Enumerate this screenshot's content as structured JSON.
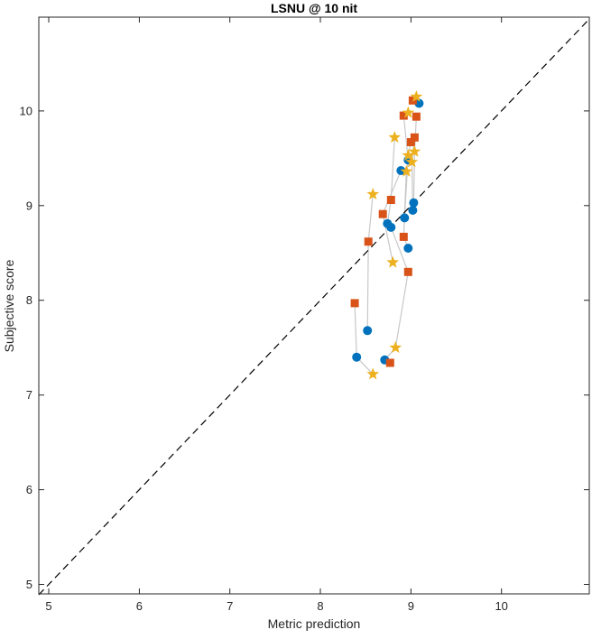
{
  "chart_data": {
    "type": "scatter",
    "title": "LSNU @ 10 nit",
    "xlabel": "Metric prediction",
    "ylabel": "Subjective score",
    "xlim": [
      4.89,
      10.97
    ],
    "ylim": [
      4.9,
      10.99
    ],
    "xticks": [
      5,
      6,
      7,
      8,
      9,
      10
    ],
    "yticks": [
      5,
      6,
      7,
      8,
      9,
      10
    ],
    "grid": false,
    "legend": "none",
    "axis_color": "#262626",
    "identity_line": {
      "style": "dashed",
      "color": "#000000",
      "from": [
        4.89,
        4.89
      ],
      "to": [
        10.97,
        10.97
      ]
    },
    "connector_lines": {
      "color": "#c8c8c8",
      "groups": [
        [
          [
            9.06,
            10.15
          ],
          [
            9.02,
            10.11
          ],
          [
            9.09,
            10.08
          ]
        ],
        [
          [
            8.97,
            9.98
          ],
          [
            8.92,
            9.95
          ],
          [
            8.97,
            9.48
          ]
        ],
        [
          [
            9.06,
            9.94
          ],
          [
            9.04,
            9.57
          ],
          [
            9.03,
            9.03
          ]
        ],
        [
          [
            9.04,
            9.72
          ],
          [
            9.01,
            9.46
          ],
          [
            9.02,
            8.95
          ]
        ],
        [
          [
            9.0,
            9.67
          ],
          [
            8.97,
            9.53
          ],
          [
            8.93,
            8.87
          ]
        ],
        [
          [
            8.82,
            9.72
          ],
          [
            8.78,
            9.06
          ],
          [
            8.74,
            8.81
          ]
        ],
        [
          [
            8.95,
            9.36
          ],
          [
            8.92,
            8.67
          ],
          [
            8.97,
            8.55
          ]
        ],
        [
          [
            8.89,
            9.37
          ],
          [
            8.69,
            8.91
          ],
          [
            8.8,
            8.4
          ]
        ],
        [
          [
            8.58,
            9.12
          ],
          [
            8.53,
            8.62
          ],
          [
            8.52,
            7.68
          ]
        ],
        [
          [
            8.78,
            8.77
          ],
          [
            8.97,
            8.3
          ],
          [
            8.83,
            7.5
          ]
        ],
        [
          [
            8.38,
            7.97
          ],
          [
            8.4,
            7.4
          ],
          [
            8.58,
            7.22
          ]
        ],
        [
          [
            8.83,
            7.5
          ],
          [
            8.71,
            7.37
          ],
          [
            8.77,
            7.34
          ]
        ]
      ]
    },
    "series": [
      {
        "name": "circle-series",
        "marker": "circle",
        "color": "#0072BD",
        "points": [
          [
            9.09,
            10.08
          ],
          [
            8.97,
            9.48
          ],
          [
            8.89,
            9.37
          ],
          [
            9.03,
            9.03
          ],
          [
            9.02,
            8.95
          ],
          [
            8.93,
            8.87
          ],
          [
            8.74,
            8.81
          ],
          [
            8.78,
            8.77
          ],
          [
            8.97,
            8.55
          ],
          [
            8.52,
            7.68
          ],
          [
            8.4,
            7.4
          ],
          [
            8.71,
            7.37
          ]
        ]
      },
      {
        "name": "square-series",
        "marker": "square",
        "color": "#D95319",
        "points": [
          [
            9.02,
            10.11
          ],
          [
            8.92,
            9.95
          ],
          [
            9.06,
            9.94
          ],
          [
            9.04,
            9.72
          ],
          [
            9.0,
            9.67
          ],
          [
            8.78,
            9.06
          ],
          [
            8.69,
            8.91
          ],
          [
            8.53,
            8.62
          ],
          [
            8.92,
            8.67
          ],
          [
            8.97,
            8.3
          ],
          [
            8.38,
            7.97
          ],
          [
            8.77,
            7.34
          ]
        ]
      },
      {
        "name": "star-series",
        "marker": "star",
        "color": "#EDB120",
        "points": [
          [
            9.06,
            10.15
          ],
          [
            8.97,
            9.98
          ],
          [
            8.82,
            9.72
          ],
          [
            9.04,
            9.57
          ],
          [
            8.97,
            9.53
          ],
          [
            9.01,
            9.46
          ],
          [
            8.95,
            9.36
          ],
          [
            8.58,
            9.12
          ],
          [
            8.8,
            8.4
          ],
          [
            8.83,
            7.5
          ],
          [
            8.58,
            7.22
          ]
        ]
      }
    ]
  }
}
